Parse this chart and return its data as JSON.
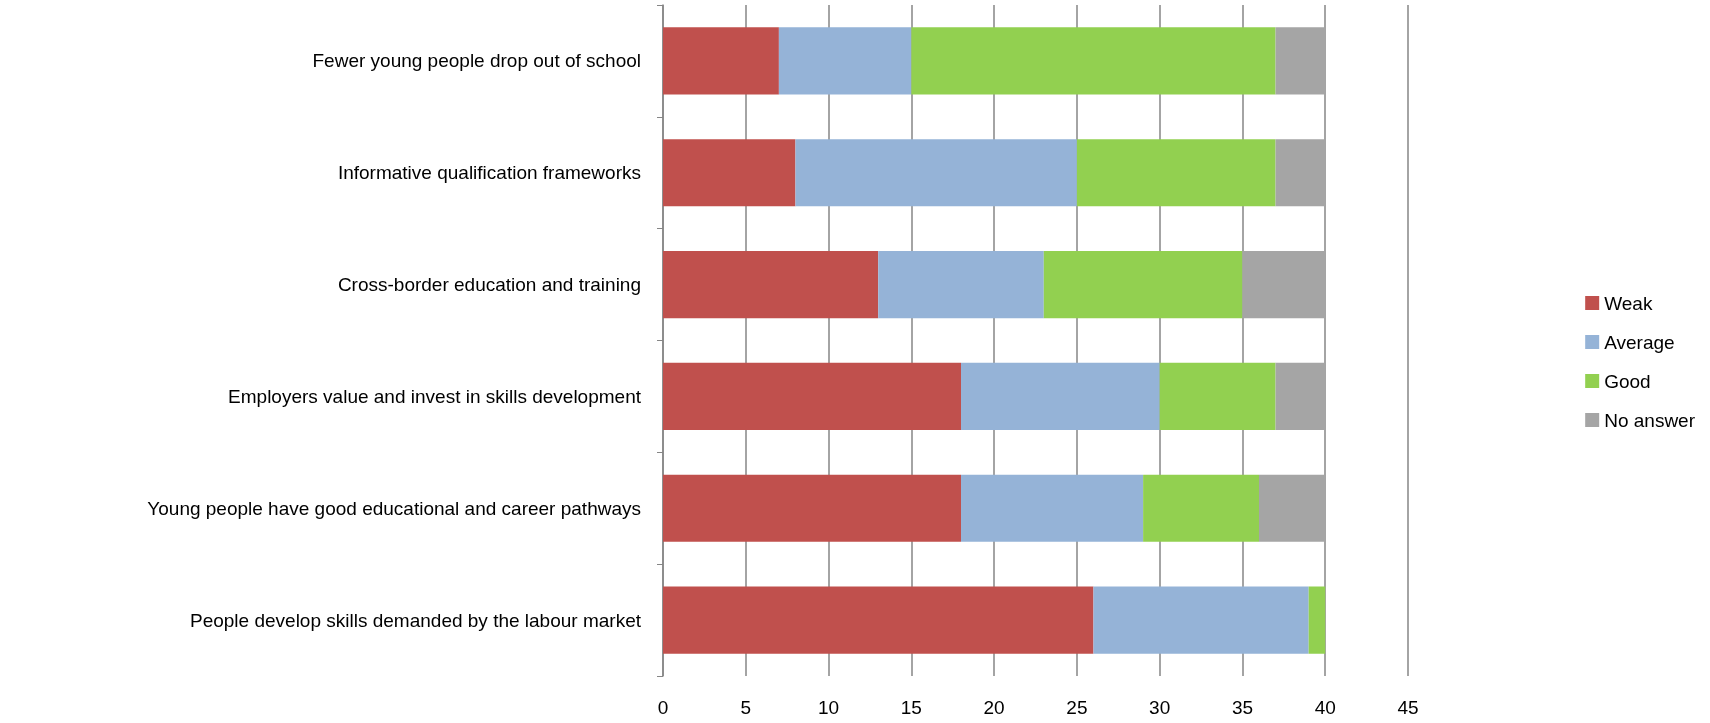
{
  "chart_data": {
    "type": "bar",
    "orientation": "horizontal",
    "stacked": true,
    "categories": [
      "Fewer young people drop out of school",
      "Informative qualification frameworks",
      "Cross-border education and training",
      "Employers value and invest in skills development",
      "Young people have good educational and career pathways",
      "People develop skills demanded by the labour market"
    ],
    "series": [
      {
        "name": "Weak",
        "color": "#c0504d",
        "values": [
          7,
          8,
          13,
          18,
          18,
          26
        ]
      },
      {
        "name": "Average",
        "color": "#95b3d7",
        "values": [
          8,
          17,
          10,
          12,
          11,
          13
        ]
      },
      {
        "name": "Good",
        "color": "#92d050",
        "values": [
          22,
          12,
          12,
          7,
          7,
          1
        ]
      },
      {
        "name": "No answer",
        "color": "#a5a5a5",
        "values": [
          3,
          3,
          5,
          3,
          4,
          0
        ]
      }
    ],
    "xlim": [
      0,
      45
    ],
    "xticks": [
      0,
      5,
      10,
      15,
      20,
      25,
      30,
      35,
      40,
      45
    ],
    "grid": "x",
    "legend": "right"
  }
}
